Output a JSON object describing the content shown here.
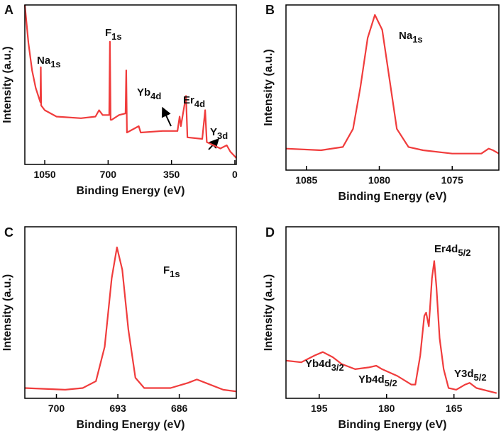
{
  "chart_data": [
    {
      "type": "line",
      "label": "A",
      "xlabel": "Binding Energy (eV)",
      "ylabel": "Intensity (a.u.)",
      "xlim": [
        1160,
        -8
      ],
      "xticks": [
        1050,
        700,
        350,
        0
      ],
      "ylim": [
        0,
        100
      ],
      "color": "#f03c3c",
      "x": [
        1160,
        1140,
        1120,
        1100,
        1080,
        1074,
        1072,
        1070,
        1050,
        985,
        850,
        770,
        750,
        730,
        694,
        690,
        686,
        680,
        640,
        604,
        600,
        596,
        531,
        520,
        400,
        317,
        305,
        298,
        270,
        262,
        180,
        164,
        155,
        80,
        45,
        25,
        0,
        -8
      ],
      "values": [
        100,
        76,
        59,
        48,
        41,
        39,
        61,
        37,
        34,
        30,
        29,
        30,
        34,
        31,
        31,
        77,
        28,
        28,
        31,
        32,
        59,
        20,
        24,
        20,
        21,
        21,
        30,
        24,
        43,
        17,
        16,
        34,
        14,
        10,
        12,
        8,
        5,
        4
      ],
      "annotations": [
        {
          "text": "Na",
          "sub": "1s"
        },
        {
          "text": "F",
          "sub": "1s"
        },
        {
          "text": "Yb",
          "sub": "4d"
        },
        {
          "text": "Er",
          "sub": "4d"
        },
        {
          "text": "Y",
          "sub": "3d"
        }
      ]
    },
    {
      "type": "line",
      "label": "B",
      "xlabel": "Binding Energy (eV)",
      "ylabel": "Intensity (a.u.)",
      "xlim": [
        1086.4,
        1071.8
      ],
      "xticks": [
        1085,
        1080,
        1075
      ],
      "ylim": [
        0,
        100
      ],
      "color": "#f03c3c",
      "x": [
        1086.4,
        1084,
        1082.5,
        1081.8,
        1081.3,
        1080.8,
        1080.3,
        1079.8,
        1079.3,
        1078.8,
        1078,
        1077,
        1075,
        1073,
        1072.5,
        1072.2,
        1071.8
      ],
      "values": [
        13,
        12,
        14,
        25,
        50,
        80,
        94,
        85,
        55,
        25,
        14,
        12,
        10,
        10,
        13,
        12,
        10
      ],
      "annotations": [
        {
          "text": "Na",
          "sub": "1s"
        }
      ]
    },
    {
      "type": "line",
      "label": "C",
      "xlabel": "Binding Energy (eV)",
      "ylabel": "Intensity (a.u.)",
      "xlim": [
        703.6,
        679.5
      ],
      "xticks": [
        700,
        693,
        686
      ],
      "ylim": [
        0,
        100
      ],
      "color": "#f03c3c",
      "x": [
        703.6,
        699,
        697,
        695.5,
        694.5,
        693.7,
        693.1,
        692.5,
        691.8,
        691,
        690,
        687,
        685,
        684,
        683,
        681,
        679.5
      ],
      "values": [
        6,
        5,
        6,
        10,
        30,
        70,
        88,
        75,
        40,
        12,
        6,
        6,
        9,
        11,
        9,
        5,
        4
      ],
      "annotations": [
        {
          "text": "F",
          "sub": "1s"
        }
      ]
    },
    {
      "type": "line",
      "label": "D",
      "xlabel": "Binding Energy (eV)",
      "ylabel": "Intensity (a.u.)",
      "xlim": [
        202.4,
        155
      ],
      "xticks": [
        195,
        180,
        165
      ],
      "ylim": [
        0,
        100
      ],
      "color": "#f03c3c",
      "x": [
        202.4,
        199,
        196,
        194.2,
        192,
        190,
        187,
        184,
        182.3,
        181,
        177.6,
        174.5,
        173.6,
        172.5,
        171.6,
        171.2,
        170.6,
        169.9,
        169.4,
        168.9,
        168.2,
        167.3,
        166.2,
        164.5,
        162.5,
        161.5,
        160,
        157,
        155.5
      ],
      "values": [
        22,
        21,
        25,
        27,
        24,
        20,
        17,
        18,
        19,
        17,
        13,
        8,
        8,
        25,
        48,
        50,
        42,
        70,
        80,
        65,
        35,
        17,
        6,
        5,
        8,
        9,
        6,
        4,
        3
      ],
      "annotations": [
        {
          "text": "Yb4d",
          "sub": "3/2"
        },
        {
          "text": "Yb4d",
          "sub": "5/2"
        },
        {
          "text": "Er4d",
          "sub": "5/2"
        },
        {
          "text": "Y3d",
          "sub": "5/2"
        }
      ]
    }
  ]
}
